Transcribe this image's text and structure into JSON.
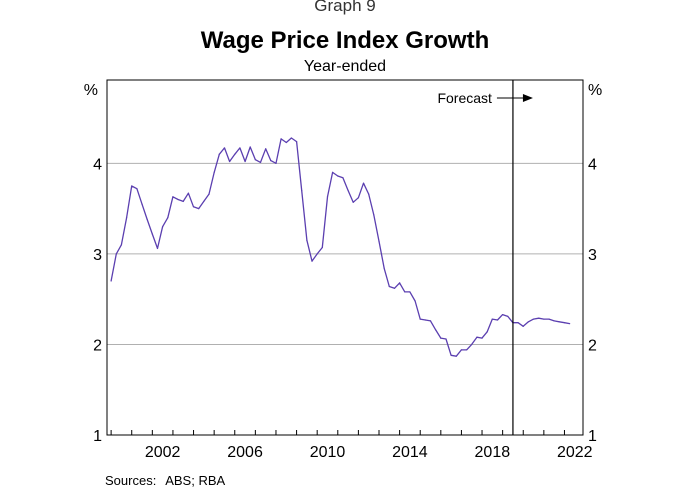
{
  "header": {
    "graph_label": "Graph 9",
    "title": "Wage Price Index Growth",
    "subtitle": "Year-ended"
  },
  "footer": {
    "sources_label": "Sources:",
    "sources_text": "ABS; RBA"
  },
  "colors": {
    "series": "#5b3fb0",
    "grid": "#b0b0b0",
    "axis": "#000000"
  },
  "chart_data": {
    "type": "line",
    "title": "Wage Price Index Growth",
    "subtitle": "Year-ended",
    "ylabel_left": "%",
    "ylabel_right": "%",
    "ylim": [
      1,
      4.92
    ],
    "yticks": [
      1,
      2,
      3,
      4
    ],
    "xlim": [
      1999.8,
      2022.9
    ],
    "xticks": [
      2002,
      2006,
      2010,
      2014,
      2018,
      2022
    ],
    "grid": true,
    "forecast": {
      "label": "Forecast",
      "start": 2019.5
    },
    "series": [
      {
        "name": "Wage Price Index, year-ended growth",
        "x": [
          2000.0,
          2000.25,
          2000.5,
          2000.75,
          2001.0,
          2001.25,
          2001.5,
          2001.75,
          2002.0,
          2002.25,
          2002.5,
          2002.75,
          2003.0,
          2003.25,
          2003.5,
          2003.75,
          2004.0,
          2004.25,
          2004.5,
          2004.75,
          2005.0,
          2005.25,
          2005.5,
          2005.75,
          2006.0,
          2006.25,
          2006.5,
          2006.75,
          2007.0,
          2007.25,
          2007.5,
          2007.75,
          2008.0,
          2008.25,
          2008.5,
          2008.75,
          2009.0,
          2009.25,
          2009.5,
          2009.75,
          2010.0,
          2010.25,
          2010.5,
          2010.75,
          2011.0,
          2011.25,
          2011.5,
          2011.75,
          2012.0,
          2012.25,
          2012.5,
          2012.75,
          2013.0,
          2013.25,
          2013.5,
          2013.75,
          2014.0,
          2014.25,
          2014.5,
          2014.75,
          2015.0,
          2015.25,
          2015.5,
          2015.75,
          2016.0,
          2016.25,
          2016.5,
          2016.75,
          2017.0,
          2017.25,
          2017.5,
          2017.75,
          2018.0,
          2018.25,
          2018.5,
          2018.75,
          2019.0,
          2019.25,
          2019.5,
          2019.75,
          2020.0,
          2020.25,
          2020.5,
          2020.75,
          2021.0,
          2021.25,
          2021.5,
          2021.75,
          2022.0,
          2022.25
        ],
        "values": [
          2.7,
          3.0,
          3.1,
          3.4,
          3.75,
          3.72,
          3.55,
          3.38,
          3.22,
          3.06,
          3.3,
          3.4,
          3.63,
          3.6,
          3.58,
          3.67,
          3.52,
          3.5,
          3.58,
          3.66,
          3.9,
          4.1,
          4.17,
          4.02,
          4.1,
          4.17,
          4.02,
          4.18,
          4.04,
          4.01,
          4.16,
          4.03,
          4.0,
          4.27,
          4.23,
          4.28,
          4.24,
          3.7,
          3.15,
          2.92,
          3.0,
          3.07,
          3.63,
          3.9,
          3.86,
          3.84,
          3.7,
          3.57,
          3.62,
          3.78,
          3.66,
          3.43,
          3.14,
          2.84,
          2.64,
          2.62,
          2.68,
          2.58,
          2.58,
          2.48,
          2.28,
          2.27,
          2.26,
          2.16,
          2.07,
          2.06,
          1.88,
          1.87,
          1.94,
          1.94,
          2.0,
          2.08,
          2.07,
          2.14,
          2.28,
          2.27,
          2.33,
          2.31,
          2.24,
          2.24,
          2.2,
          2.25,
          2.28,
          2.29,
          2.28,
          2.28,
          2.26,
          2.25,
          2.24,
          2.23
        ]
      }
    ]
  }
}
